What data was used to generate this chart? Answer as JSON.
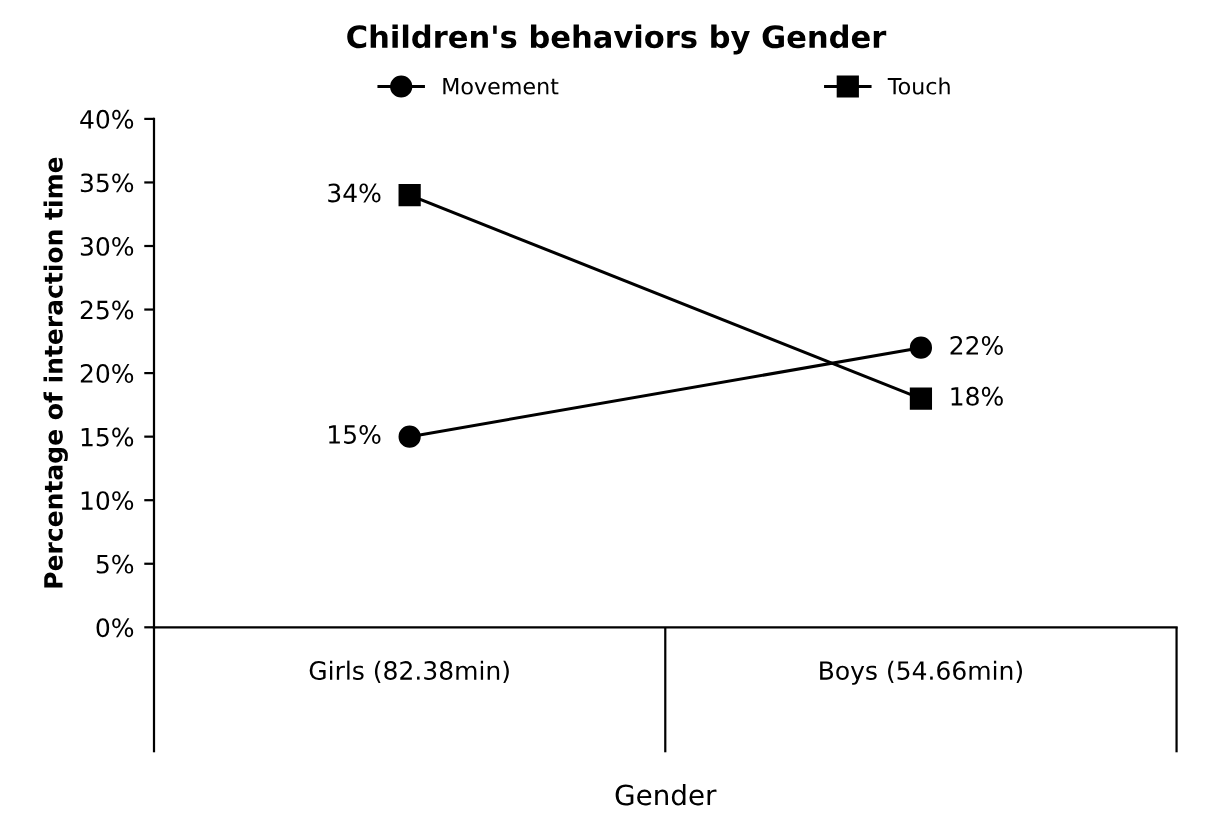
{
  "chart_data": {
    "type": "line",
    "title": "Children's behaviors by Gender",
    "xlabel": "Gender",
    "ylabel": "Percentage of interaction time",
    "categories": [
      "Girls (82.38min)",
      "Boys (54.66min)"
    ],
    "series": [
      {
        "name": "Movement",
        "color": "#000000",
        "marker": "circle",
        "values": [
          15,
          22
        ],
        "value_labels": [
          "15%",
          "22%"
        ]
      },
      {
        "name": "Touch",
        "color": "#000000",
        "marker": "square",
        "values": [
          34,
          18
        ],
        "value_labels": [
          "34%",
          "18%"
        ]
      }
    ],
    "ylim": [
      0,
      40
    ],
    "yticks": [
      {
        "value": 0,
        "label": "0%"
      },
      {
        "value": 5,
        "label": "5%"
      },
      {
        "value": 10,
        "label": "10%"
      },
      {
        "value": 15,
        "label": "15%"
      },
      {
        "value": 20,
        "label": "20%"
      },
      {
        "value": 25,
        "label": "25%"
      },
      {
        "value": 30,
        "label": "30%"
      },
      {
        "value": 35,
        "label": "35%"
      },
      {
        "value": 40,
        "label": "40%"
      }
    ],
    "legend": "top",
    "grid": false,
    "line_style": "solid"
  }
}
